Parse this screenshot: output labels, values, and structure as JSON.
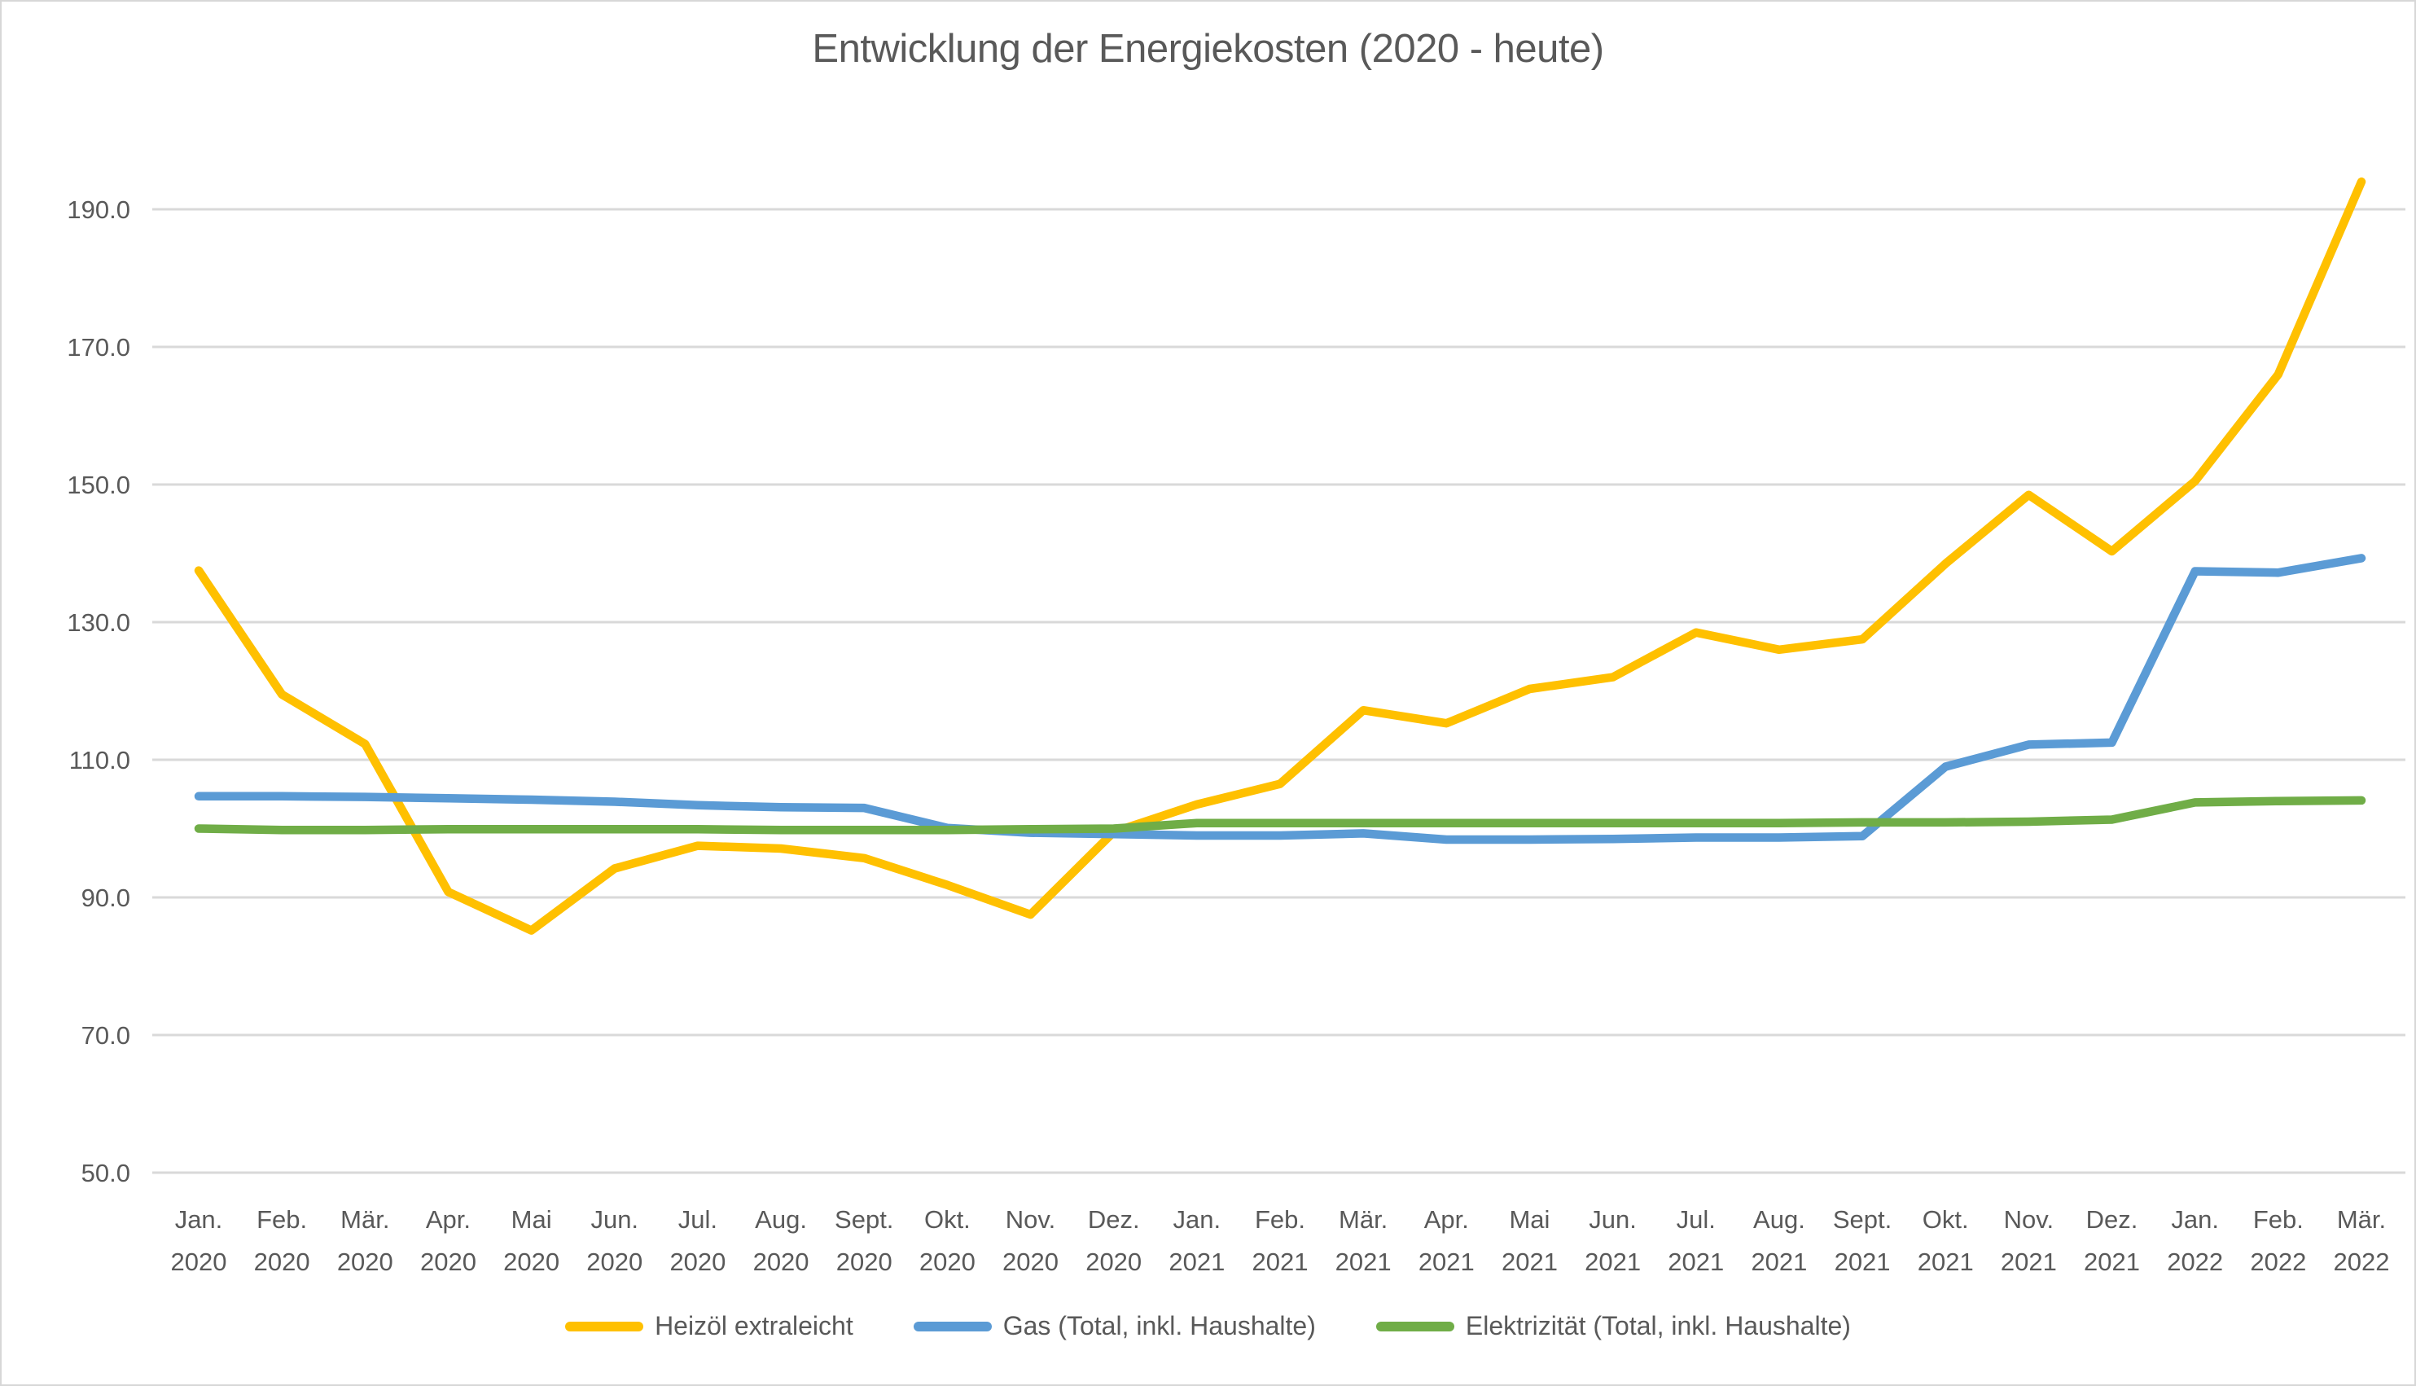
{
  "title": "Entwicklung der Energiekosten (2020 - heute)",
  "styles": {
    "text_color": "#595959",
    "grid_color": "#D9D9D9",
    "background": "#FFFFFF",
    "accent_yellow": "#FFC000",
    "accent_blue": "#5B9BD5",
    "accent_green": "#70AD47"
  },
  "chart_data": {
    "type": "line",
    "title": "Entwicklung der Energiekosten (2020 - heute)",
    "grid": true,
    "legend_position": "bottom",
    "xlabel": "",
    "ylabel": "",
    "y_axis": {
      "min": 50,
      "max": 190,
      "tick_step": 20,
      "tick_labels": [
        "50.0",
        "70.0",
        "90.0",
        "110.0",
        "130.0",
        "150.0",
        "170.0",
        "190.0"
      ]
    },
    "categories": [
      {
        "month": "Jan.",
        "year": "2020"
      },
      {
        "month": "Feb.",
        "year": "2020"
      },
      {
        "month": "Mär.",
        "year": "2020"
      },
      {
        "month": "Apr.",
        "year": "2020"
      },
      {
        "month": "Mai",
        "year": "2020"
      },
      {
        "month": "Jun.",
        "year": "2020"
      },
      {
        "month": "Jul.",
        "year": "2020"
      },
      {
        "month": "Aug.",
        "year": "2020"
      },
      {
        "month": "Sept.",
        "year": "2020"
      },
      {
        "month": "Okt.",
        "year": "2020"
      },
      {
        "month": "Nov.",
        "year": "2020"
      },
      {
        "month": "Dez.",
        "year": "2020"
      },
      {
        "month": "Jan.",
        "year": "2021"
      },
      {
        "month": "Feb.",
        "year": "2021"
      },
      {
        "month": "Mär.",
        "year": "2021"
      },
      {
        "month": "Apr.",
        "year": "2021"
      },
      {
        "month": "Mai",
        "year": "2021"
      },
      {
        "month": "Jun.",
        "year": "2021"
      },
      {
        "month": "Jul.",
        "year": "2021"
      },
      {
        "month": "Aug.",
        "year": "2021"
      },
      {
        "month": "Sept.",
        "year": "2021"
      },
      {
        "month": "Okt.",
        "year": "2021"
      },
      {
        "month": "Nov.",
        "year": "2021"
      },
      {
        "month": "Dez.",
        "year": "2021"
      },
      {
        "month": "Jan.",
        "year": "2022"
      },
      {
        "month": "Feb.",
        "year": "2022"
      },
      {
        "month": "Mär.",
        "year": "2022"
      }
    ],
    "series": [
      {
        "name": "Heizöl extraleicht",
        "color": "#FFC000",
        "values": [
          137.5,
          119.5,
          112.3,
          90.8,
          85.2,
          94.2,
          97.5,
          97.1,
          95.7,
          91.8,
          87.5,
          99.5,
          103.5,
          106.5,
          117.2,
          115.3,
          120.3,
          122.0,
          128.5,
          126.0,
          127.5,
          138.5,
          148.5,
          140.3,
          150.5,
          166.0,
          194.0
        ]
      },
      {
        "name": "Gas (Total, inkl. Haushalte)",
        "color": "#5B9BD5",
        "values": [
          104.7,
          104.7,
          104.6,
          104.4,
          104.2,
          103.9,
          103.4,
          103.1,
          103.0,
          100.1,
          99.4,
          99.2,
          99.0,
          99.0,
          99.3,
          98.4,
          98.4,
          98.5,
          98.7,
          98.7,
          98.9,
          109.0,
          112.2,
          112.5,
          137.4,
          137.2,
          139.3
        ]
      },
      {
        "name": "Elektrizität (Total, inkl. Haushalte)",
        "color": "#70AD47",
        "values": [
          100.0,
          99.8,
          99.8,
          99.9,
          99.9,
          99.9,
          99.9,
          99.8,
          99.8,
          99.8,
          99.9,
          100.0,
          100.8,
          100.8,
          100.8,
          100.8,
          100.8,
          100.8,
          100.8,
          100.8,
          100.9,
          100.9,
          101.0,
          101.3,
          103.8,
          104.0,
          104.1
        ]
      }
    ]
  }
}
